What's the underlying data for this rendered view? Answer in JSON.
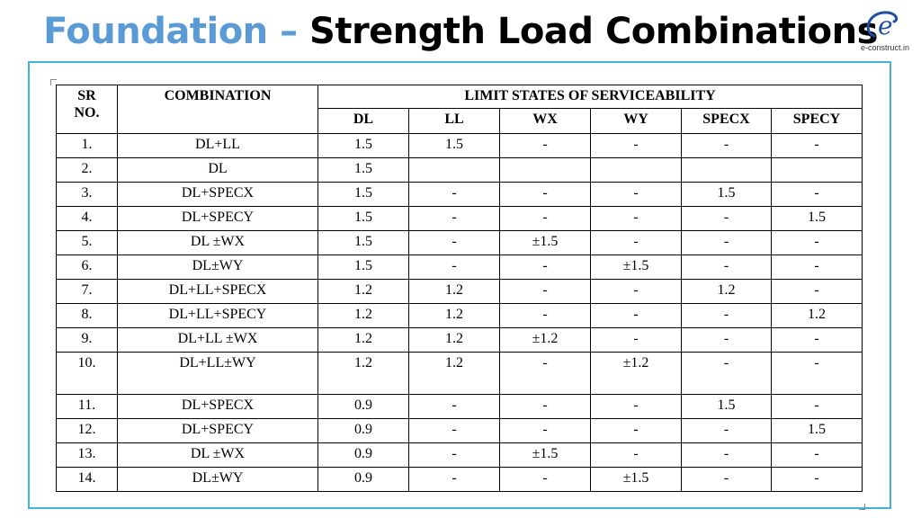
{
  "title": {
    "part1": "Foundation –",
    "part2": "Strength Load Combinations"
  },
  "logo": {
    "glyph": "e",
    "text": "e-construct.in",
    "color": "#1f4fa3"
  },
  "table": {
    "header": {
      "sr_line1": "SR",
      "sr_line2": "NO.",
      "combination": "COMBINATION",
      "group": "LIMIT STATES OF SERVICEABILITY",
      "columns": [
        "DL",
        "LL",
        "WX",
        "WY",
        "SPECX",
        "SPECY"
      ]
    },
    "rows": [
      {
        "sr": "1.",
        "combo": "DL+LL",
        "vals": [
          "1.5",
          "1.5",
          "-",
          "-",
          "-",
          "-"
        ]
      },
      {
        "sr": "2.",
        "combo": "DL",
        "vals": [
          "1.5",
          "",
          "",
          "",
          "",
          ""
        ]
      },
      {
        "sr": "3.",
        "combo": "DL+SPECX",
        "vals": [
          "1.5",
          "-",
          "-",
          "-",
          "1.5",
          "-"
        ]
      },
      {
        "sr": "4.",
        "combo": "DL+SPECY",
        "vals": [
          "1.5",
          "-",
          "-",
          "-",
          "-",
          "1.5"
        ]
      },
      {
        "sr": "5.",
        "combo": "DL ±WX",
        "vals": [
          "1.5",
          "-",
          "±1.5",
          "-",
          "-",
          "-"
        ]
      },
      {
        "sr": "6.",
        "combo": "DL±WY",
        "vals": [
          "1.5",
          "-",
          "-",
          "±1.5",
          "-",
          "-"
        ]
      },
      {
        "sr": "7.",
        "combo": "DL+LL+SPECX",
        "vals": [
          "1.2",
          "1.2",
          "-",
          "-",
          "1.2",
          "-"
        ]
      },
      {
        "sr": "8.",
        "combo": "DL+LL+SPECY",
        "vals": [
          "1.2",
          "1.2",
          "-",
          "-",
          "-",
          "1.2"
        ]
      },
      {
        "sr": "9.",
        "combo": "DL+LL ±WX",
        "vals": [
          "1.2",
          "1.2",
          "±1.2",
          "-",
          "-",
          "-"
        ]
      },
      {
        "sr": "10.",
        "combo": "DL+LL±WY",
        "vals": [
          "1.2",
          "1.2",
          "-",
          "±1.2",
          "-",
          "-"
        ],
        "tall": true
      },
      {
        "sr": "11.",
        "combo": "DL+SPECX",
        "vals": [
          "0.9",
          "-",
          "-",
          "-",
          "1.5",
          "-"
        ]
      },
      {
        "sr": "12.",
        "combo": "DL+SPECY",
        "vals": [
          "0.9",
          "-",
          "-",
          "-",
          "-",
          "1.5"
        ]
      },
      {
        "sr": "13.",
        "combo": "DL ±WX",
        "vals": [
          "0.9",
          "-",
          "±1.5",
          "-",
          "-",
          "-"
        ]
      },
      {
        "sr": "14.",
        "combo": "DL±WY",
        "vals": [
          "0.9",
          "-",
          "-",
          "±1.5",
          "-",
          "-"
        ]
      }
    ]
  },
  "colors": {
    "title_accent": "#5b9bd5",
    "frame": "#45b1d8"
  }
}
